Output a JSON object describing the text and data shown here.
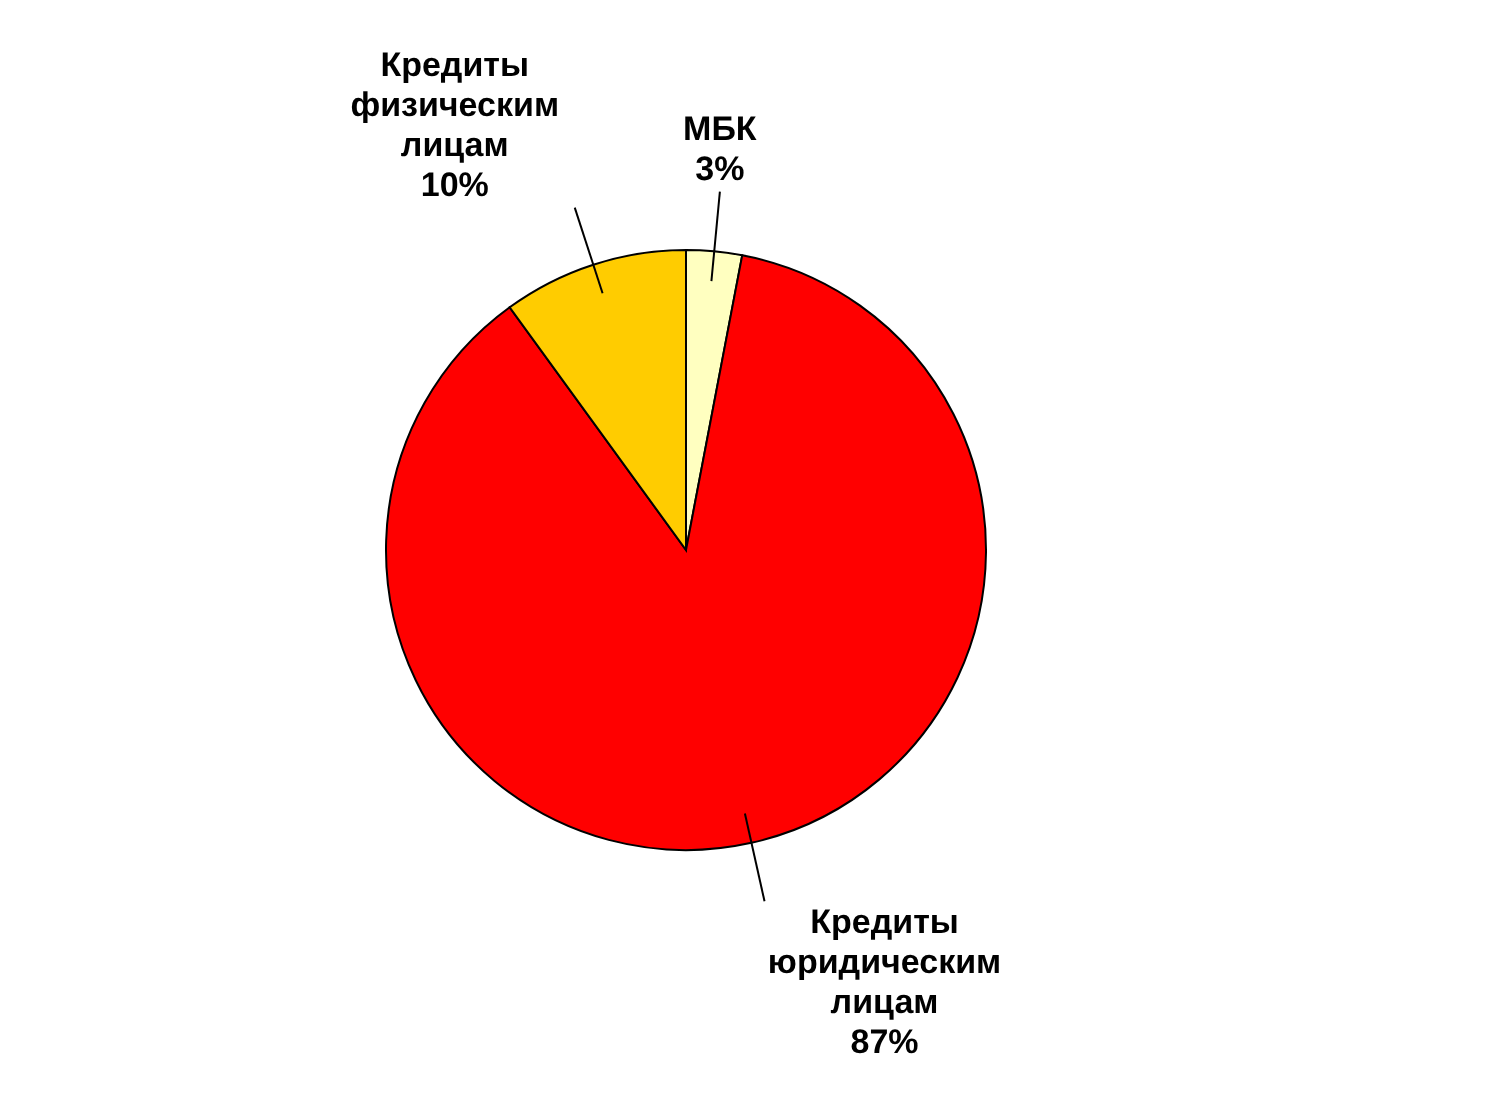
{
  "chart_data": {
    "type": "pie",
    "categories": [
      "МБК",
      "Кредиты юридическим лицам",
      "Кредиты физическим лицам"
    ],
    "values": [
      3,
      87,
      10
    ],
    "colors": [
      "#ffffc0",
      "#ff0000",
      "#ffcc00"
    ],
    "value_labels": [
      "3%",
      "87%",
      "10%"
    ]
  }
}
